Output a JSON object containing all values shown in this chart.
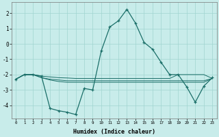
{
  "x": [
    0,
    1,
    2,
    3,
    4,
    5,
    6,
    7,
    8,
    9,
    10,
    11,
    12,
    13,
    14,
    15,
    16,
    17,
    18,
    19,
    20,
    21,
    22,
    23
  ],
  "line_main": [
    -2.3,
    -2.0,
    -2.0,
    -2.1,
    -4.2,
    -4.35,
    -4.45,
    -4.6,
    -2.9,
    -3.0,
    -0.45,
    1.1,
    1.5,
    2.25,
    1.35,
    0.1,
    -0.35,
    -1.2,
    -2.0,
    -2.0,
    -2.8,
    -3.8,
    -2.75,
    -2.2
  ],
  "line_flat1": [
    -2.3,
    -2.0,
    -2.0,
    -2.1,
    -2.15,
    -2.2,
    -2.22,
    -2.25,
    -2.25,
    -2.25,
    -2.25,
    -2.25,
    -2.25,
    -2.25,
    -2.25,
    -2.25,
    -2.25,
    -2.25,
    -2.25,
    -2.0,
    -2.0,
    -2.0,
    -2.0,
    -2.25
  ],
  "line_flat2": [
    -2.3,
    -2.0,
    -2.0,
    -2.2,
    -2.3,
    -2.35,
    -2.4,
    -2.4,
    -2.4,
    -2.4,
    -2.4,
    -2.4,
    -2.4,
    -2.4,
    -2.4,
    -2.4,
    -2.4,
    -2.4,
    -2.4,
    -2.4,
    -2.4,
    -2.4,
    -2.4,
    -2.25
  ],
  "line_flat3": [
    -2.3,
    -2.0,
    -2.0,
    -2.2,
    -2.35,
    -2.45,
    -2.5,
    -2.5,
    -2.5,
    -2.5,
    -2.5,
    -2.5,
    -2.5,
    -2.5,
    -2.5,
    -2.5,
    -2.5,
    -2.5,
    -2.5,
    -2.5,
    -2.5,
    -2.5,
    -2.5,
    -2.25
  ],
  "bg_color": "#c8ecea",
  "grid_color": "#a0d4d0",
  "line_color": "#1a6e68",
  "xlabel": "Humidex (Indice chaleur)",
  "yticks": [
    -4,
    -3,
    -2,
    -1,
    0,
    1,
    2
  ],
  "xticks": [
    0,
    1,
    2,
    3,
    4,
    5,
    6,
    7,
    8,
    9,
    10,
    11,
    12,
    13,
    14,
    15,
    16,
    17,
    18,
    19,
    20,
    21,
    22,
    23
  ],
  "ylim": [
    -4.85,
    2.7
  ],
  "xlim": [
    -0.5,
    23.5
  ]
}
